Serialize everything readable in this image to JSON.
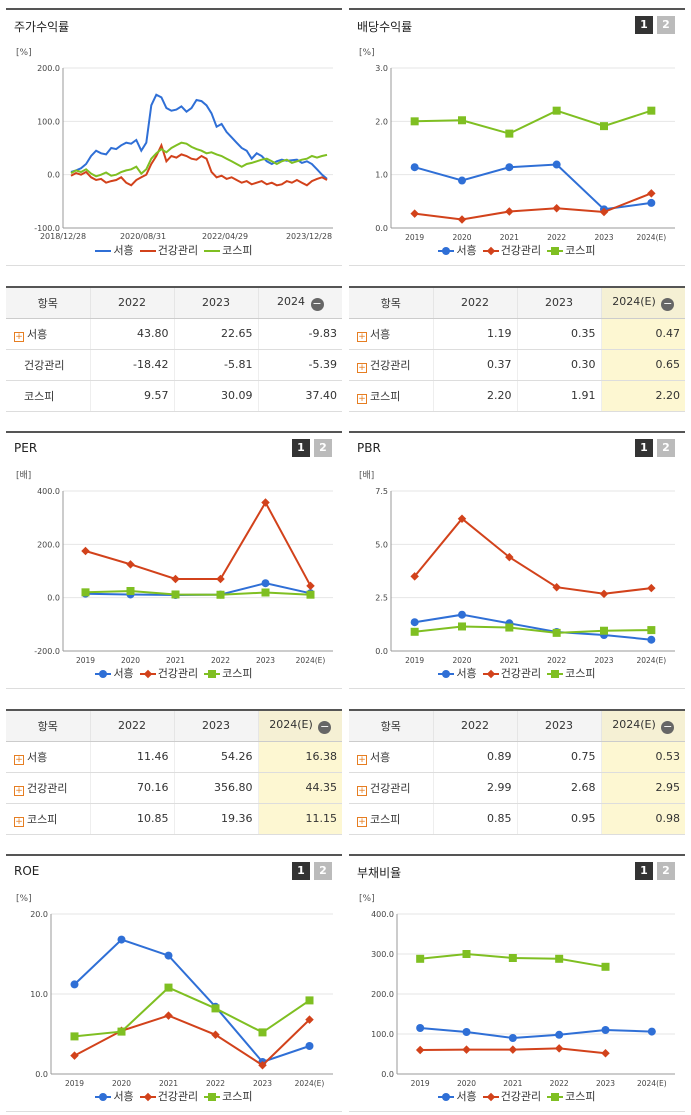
{
  "series_names": [
    "서흥",
    "건강관리",
    "코스피"
  ],
  "series_colors": [
    "#2f6fd6",
    "#d2421b",
    "#7fbf22"
  ],
  "panels": {
    "price": {
      "title": "주가수익률",
      "unit": "[%]"
    },
    "dividend": {
      "title": "배당수익률",
      "unit": "[%]"
    },
    "per": {
      "title": "PER",
      "unit": "[배]"
    },
    "pbr": {
      "title": "PBR",
      "unit": "[배]"
    },
    "roe": {
      "title": "ROE",
      "unit": "[%]"
    },
    "debt": {
      "title": "부채비율",
      "unit": "[%]"
    }
  },
  "pager": {
    "page1": "1",
    "page2": "2"
  },
  "chart_data": [
    {
      "id": "price",
      "type": "line",
      "x_ticks": [
        "2018/12/28",
        "2020/08/31",
        "2022/04/29",
        "2023/12/28"
      ],
      "y_ticks": [
        "200.0",
        "100.0",
        "0.0",
        "-100.0"
      ],
      "ylim": [
        -100,
        200
      ],
      "series": [
        {
          "name": "서흥",
          "values": [
            5,
            8,
            12,
            20,
            35,
            45,
            40,
            38,
            50,
            48,
            55,
            60,
            58,
            65,
            45,
            60,
            130,
            150,
            145,
            125,
            120,
            122,
            128,
            118,
            125,
            140,
            138,
            130,
            115,
            90,
            95,
            80,
            70,
            60,
            50,
            45,
            30,
            40,
            35,
            25,
            20,
            25,
            28,
            26,
            27,
            28,
            22,
            25,
            20,
            10,
            0,
            -8
          ]
        },
        {
          "name": "건강관리",
          "values": [
            -2,
            3,
            0,
            5,
            -5,
            -10,
            -8,
            -15,
            -12,
            -10,
            -5,
            -15,
            -20,
            -10,
            -5,
            0,
            20,
            35,
            55,
            25,
            35,
            32,
            38,
            35,
            30,
            28,
            35,
            30,
            5,
            -5,
            -2,
            -8,
            -5,
            -10,
            -15,
            -12,
            -18,
            -15,
            -12,
            -18,
            -15,
            -20,
            -18,
            -12,
            -15,
            -10,
            -15,
            -20,
            -12,
            -8,
            -5,
            -10
          ]
        },
        {
          "name": "코스피",
          "values": [
            3,
            8,
            5,
            10,
            2,
            -3,
            0,
            4,
            -2,
            0,
            5,
            8,
            10,
            15,
            2,
            10,
            30,
            40,
            48,
            42,
            50,
            55,
            60,
            58,
            52,
            48,
            45,
            40,
            42,
            38,
            35,
            30,
            25,
            20,
            15,
            20,
            22,
            25,
            28,
            30,
            25,
            20,
            25,
            28,
            22,
            25,
            28,
            30,
            35,
            32,
            35,
            37
          ]
        }
      ]
    },
    {
      "id": "dividend",
      "type": "line",
      "categories": [
        "2019",
        "2020",
        "2021",
        "2022",
        "2023",
        "2024(E)"
      ],
      "y_ticks": [
        "3.0",
        "2.0",
        "1.0",
        "0.0"
      ],
      "ylim": [
        0,
        3
      ],
      "series": [
        {
          "name": "서흥",
          "values": [
            1.14,
            0.89,
            1.14,
            1.19,
            0.35,
            0.47
          ]
        },
        {
          "name": "건강관리",
          "values": [
            0.27,
            0.16,
            0.31,
            0.37,
            0.3,
            0.65
          ]
        },
        {
          "name": "코스피",
          "values": [
            2.0,
            2.02,
            1.77,
            2.2,
            1.91,
            2.2
          ]
        }
      ]
    },
    {
      "id": "per",
      "type": "line",
      "categories": [
        "2019",
        "2020",
        "2021",
        "2022",
        "2023",
        "2024(E)"
      ],
      "y_ticks": [
        "400.0",
        "200.0",
        "0.0",
        "-200.0"
      ],
      "ylim": [
        -200,
        400
      ],
      "series": [
        {
          "name": "서흥",
          "values": [
            15,
            12,
            10,
            11.46,
            54.26,
            16.38
          ]
        },
        {
          "name": "건강관리",
          "values": [
            175,
            125,
            70,
            70.16,
            356.8,
            44.35
          ]
        },
        {
          "name": "코스피",
          "values": [
            20,
            25,
            12,
            10.85,
            19.36,
            11.15
          ]
        }
      ]
    },
    {
      "id": "pbr",
      "type": "line",
      "categories": [
        "2019",
        "2020",
        "2021",
        "2022",
        "2023",
        "2024(E)"
      ],
      "y_ticks": [
        "7.5",
        "5.0",
        "2.5",
        "0.0"
      ],
      "ylim": [
        0,
        7.5
      ],
      "series": [
        {
          "name": "서흥",
          "values": [
            1.35,
            1.7,
            1.3,
            0.89,
            0.75,
            0.53
          ]
        },
        {
          "name": "건강관리",
          "values": [
            3.5,
            6.2,
            4.4,
            2.99,
            2.68,
            2.95
          ]
        },
        {
          "name": "코스피",
          "values": [
            0.9,
            1.15,
            1.1,
            0.85,
            0.95,
            0.98
          ]
        }
      ]
    },
    {
      "id": "roe",
      "type": "line",
      "categories": [
        "2019",
        "2020",
        "2021",
        "2022",
        "2023",
        "2024(E)"
      ],
      "y_ticks": [
        "20.0",
        "10.0",
        "0.0"
      ],
      "ylim": [
        0,
        20
      ],
      "series": [
        {
          "name": "서흥",
          "values": [
            11.2,
            16.8,
            14.8,
            8.4,
            1.5,
            3.5
          ]
        },
        {
          "name": "건강관리",
          "values": [
            2.3,
            5.4,
            7.3,
            4.9,
            1.1,
            6.8
          ]
        },
        {
          "name": "코스피",
          "values": [
            4.7,
            5.3,
            10.8,
            8.2,
            5.2,
            9.2
          ]
        }
      ]
    },
    {
      "id": "debt",
      "type": "line",
      "categories": [
        "2019",
        "2020",
        "2021",
        "2022",
        "2023",
        "2024(E)"
      ],
      "y_ticks": [
        "400.0",
        "300.0",
        "200.0",
        "100.0",
        "0.0"
      ],
      "ylim": [
        0,
        400
      ],
      "series": [
        {
          "name": "서흥",
          "values": [
            115,
            105,
            90,
            98,
            110,
            106
          ]
        },
        {
          "name": "건강관리",
          "values": [
            60,
            61,
            61,
            64,
            52,
            null
          ]
        },
        {
          "name": "코스피",
          "values": [
            288,
            300,
            290,
            288,
            268,
            null
          ]
        }
      ]
    }
  ],
  "tables": {
    "price": {
      "header": [
        "항목",
        "2022",
        "2023",
        "2024"
      ],
      "rows": [
        {
          "label": "서흥",
          "values": [
            "43.80",
            "22.65",
            "-9.83"
          ]
        },
        {
          "label": "건강관리",
          "values": [
            "-18.42",
            "-5.81",
            "-5.39"
          ]
        },
        {
          "label": "코스피",
          "values": [
            "9.57",
            "30.09",
            "37.40"
          ]
        }
      ]
    },
    "dividend": {
      "header": [
        "항목",
        "2022",
        "2023",
        "2024(E)"
      ],
      "rows": [
        {
          "label": "서흥",
          "values": [
            "1.19",
            "0.35",
            "0.47"
          ]
        },
        {
          "label": "건강관리",
          "values": [
            "0.37",
            "0.30",
            "0.65"
          ]
        },
        {
          "label": "코스피",
          "values": [
            "2.20",
            "1.91",
            "2.20"
          ]
        }
      ]
    },
    "per": {
      "header": [
        "항목",
        "2022",
        "2023",
        "2024(E)"
      ],
      "rows": [
        {
          "label": "서흥",
          "values": [
            "11.46",
            "54.26",
            "16.38"
          ]
        },
        {
          "label": "건강관리",
          "values": [
            "70.16",
            "356.80",
            "44.35"
          ]
        },
        {
          "label": "코스피",
          "values": [
            "10.85",
            "19.36",
            "11.15"
          ]
        }
      ]
    },
    "pbr": {
      "header": [
        "항목",
        "2022",
        "2023",
        "2024(E)"
      ],
      "rows": [
        {
          "label": "서흥",
          "values": [
            "0.89",
            "0.75",
            "0.53"
          ]
        },
        {
          "label": "건강관리",
          "values": [
            "2.99",
            "2.68",
            "2.95"
          ]
        },
        {
          "label": "코스피",
          "values": [
            "0.85",
            "0.95",
            "0.98"
          ]
        }
      ]
    }
  }
}
